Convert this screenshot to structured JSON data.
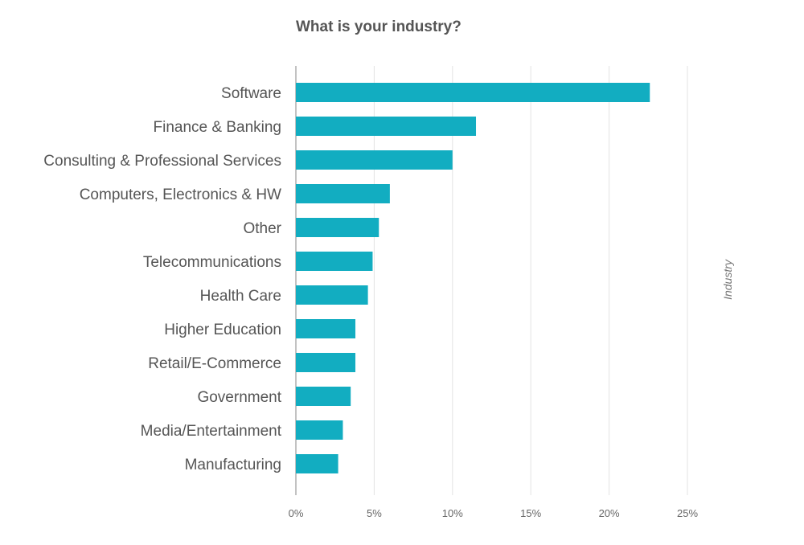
{
  "chart_data": {
    "type": "bar",
    "orientation": "horizontal",
    "title": "What is your industry?",
    "xlabel": "",
    "ylabel": "Industry",
    "xlim": [
      0,
      25
    ],
    "x_ticks": [
      "0%",
      "5%",
      "10%",
      "15%",
      "20%",
      "25%"
    ],
    "x_tick_values": [
      0,
      5,
      10,
      15,
      20,
      25
    ],
    "grid": true,
    "categories": [
      "Software",
      "Finance & Banking",
      "Consulting & Professional Services",
      "Computers, Electronics & HW",
      "Other",
      "Telecommunications",
      "Health Care",
      "Higher Education",
      "Retail/E-Commerce",
      "Government",
      "Media/Entertainment",
      "Manufacturing"
    ],
    "values": [
      22.6,
      11.5,
      10.0,
      6.0,
      5.3,
      4.9,
      4.6,
      3.8,
      3.8,
      3.5,
      3.0,
      2.7
    ],
    "unit": "%"
  },
  "colors": {
    "bar": "#12adc1",
    "grid": "#e3e3e3",
    "axis": "#999999"
  }
}
